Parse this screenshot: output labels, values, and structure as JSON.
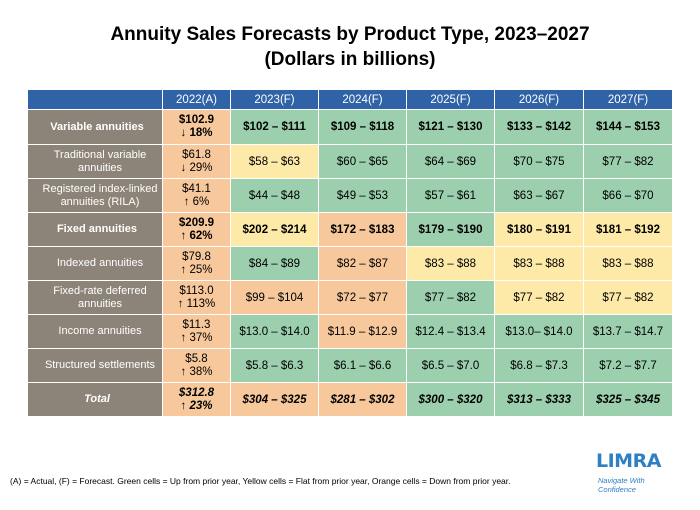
{
  "title": {
    "line1": "Annuity Sales Forecasts by Product Type, 2023–2027",
    "line2": "(Dollars in billions)"
  },
  "columns": [
    "",
    "2022(A)",
    "2023(F)",
    "2024(F)",
    "2025(F)",
    "2026(F)",
    "2027(F)"
  ],
  "rows": [
    {
      "label": "Variable annuities",
      "actual": "$102.9",
      "change": "↓ 18%",
      "values": [
        "$102 – $111",
        "$109 – $118",
        "$121 – $130",
        "$133 – $142",
        "$144 – $153"
      ],
      "status": [
        "up",
        "up",
        "up",
        "up",
        "up"
      ]
    },
    {
      "label": "Traditional variable annuities",
      "actual": "$61.8",
      "change": "↓ 29%",
      "values": [
        "$58 – $63",
        "$60 – $65",
        "$64 – $69",
        "$70 – $75",
        "$77 – $82"
      ],
      "status": [
        "flat",
        "up",
        "up",
        "up",
        "up"
      ]
    },
    {
      "label": "Registered index-linked annuities (RILA)",
      "actual": "$41.1",
      "change": "↑ 6%",
      "values": [
        "$44 – $48",
        "$49 – $53",
        "$57 – $61",
        "$63 – $67",
        "$66 – $70"
      ],
      "status": [
        "up",
        "up",
        "up",
        "up",
        "up"
      ]
    },
    {
      "label": "Fixed annuities",
      "actual": "$209.9",
      "change": "↑ 62%",
      "values": [
        "$202 – $214",
        "$172 – $183",
        "$179 – $190",
        "$180 – $191",
        "$181 – $192"
      ],
      "status": [
        "flat",
        "down",
        "up",
        "flat",
        "flat"
      ]
    },
    {
      "label": "Indexed annuities",
      "actual": "$79.8",
      "change": "↑ 25%",
      "values": [
        "$84 – $89",
        "$82 – $87",
        "$83 – $88",
        "$83 – $88",
        "$83 – $88"
      ],
      "status": [
        "up",
        "down",
        "flat",
        "flat",
        "flat"
      ]
    },
    {
      "label": "Fixed-rate deferred annuities",
      "actual": "$113.0",
      "change": "↑ 113%",
      "values": [
        "$99 – $104",
        "$72 – $77",
        "$77 – $82",
        "$77 – $82",
        "$77 – $82"
      ],
      "status": [
        "down",
        "down",
        "up",
        "flat",
        "flat"
      ]
    },
    {
      "label": "Income annuities",
      "actual": "$11.3",
      "change": "↑ 37%",
      "values": [
        "$13.0 – $14.0",
        "$11.9 – $12.9",
        "$12.4 – $13.4",
        "$13.0– $14.0",
        "$13.7 – $14.7"
      ],
      "status": [
        "up",
        "down",
        "up",
        "up",
        "up"
      ]
    },
    {
      "label": "Structured settlements",
      "actual": "$5.8",
      "change": "↑ 38%",
      "values": [
        "$5.8 – $6.3",
        "$6.1 – $6.6",
        "$6.5 – $7.0",
        "$6.8 – $7.3",
        "$7.2 – $7.7"
      ],
      "status": [
        "up",
        "up",
        "up",
        "up",
        "up"
      ]
    },
    {
      "label": "Total",
      "actual": "$312.8",
      "change": "↑ 23%",
      "values": [
        "$304 – $325",
        "$281 – $302",
        "$300 – $320",
        "$313 – $333",
        "$325 – $345"
      ],
      "status": [
        "down",
        "down",
        "up",
        "up",
        "up"
      ]
    }
  ],
  "footnote": "(A) = Actual, (F) = Forecast. Green cells = Up from prior year, Yellow cells = Flat from prior year, Orange cells = Down from prior year.",
  "logo": {
    "name": "LIMRA",
    "tagline1": "Navigate With",
    "tagline2": "Confidence"
  },
  "colors": {
    "up": "#9ccfae",
    "flat": "#fde9a8",
    "down": "#f6c89b",
    "header": "#2f62a6",
    "label": "#8c8478"
  }
}
